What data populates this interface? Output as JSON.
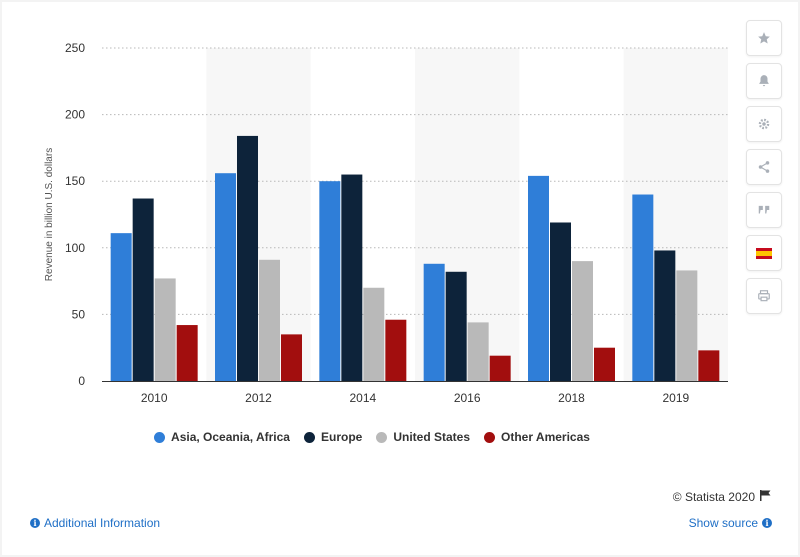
{
  "chart_data": {
    "type": "bar",
    "categories": [
      "2010",
      "2012",
      "2014",
      "2016",
      "2018",
      "2019"
    ],
    "series": [
      {
        "name": "Asia, Oceania, Africa",
        "color": "#2f7ed8",
        "values": [
          111,
          156,
          150,
          88,
          154,
          140
        ]
      },
      {
        "name": "Europe",
        "color": "#0d233a",
        "values": [
          137,
          184,
          155,
          82,
          119,
          98
        ]
      },
      {
        "name": "United States",
        "color": "#b9b9b9",
        "values": [
          77,
          91,
          70,
          44,
          90,
          83
        ]
      },
      {
        "name": "Other Americas",
        "color": "#a20e0e",
        "values": [
          42,
          35,
          46,
          19,
          25,
          23
        ]
      }
    ],
    "ylabel": "Revenue in billion U.S. dollars",
    "xlabel": "",
    "ylim": [
      0,
      250
    ],
    "yticks": [
      0,
      50,
      100,
      150,
      200,
      250
    ],
    "grid": true,
    "legend_position": "bottom"
  },
  "footer": {
    "copyright": "© Statista 2020",
    "additional_info": "Additional Information",
    "show_source": "Show source"
  },
  "toolbar": {
    "icons": [
      "star-icon",
      "bell-icon",
      "gear-icon",
      "share-icon",
      "quote-icon",
      "flag-spain-icon",
      "print-icon"
    ]
  }
}
